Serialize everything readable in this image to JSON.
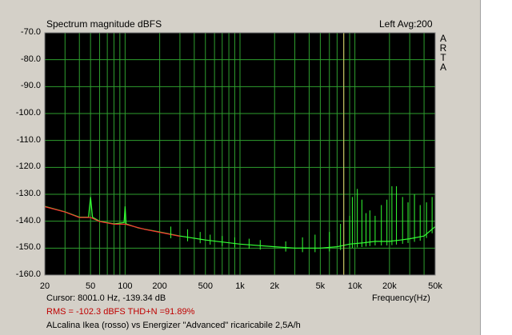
{
  "window": {
    "title": "Spectrum magnitude dBFS",
    "status": "Left  Avg:200",
    "brand_letters": [
      "A",
      "R",
      "T",
      "A"
    ]
  },
  "readouts": {
    "cursor": "Cursor:  8001.0 Hz, -139.34 dB",
    "rms": "RMS = -102.3 dBFS    THD+N =91.89%",
    "description": "ALcalina Ikea (rosso) vs Energizer \"Advanced\" ricaricabile 2,5A/h"
  },
  "colors": {
    "plot_bg": "#000000",
    "grid": "#2e9e2e",
    "trace_green": "#33ff33",
    "trace_red": "#ff3030",
    "trace_yellow": "#d8d040",
    "cursor_line": "#e8d070",
    "rms_text": "#c00000"
  },
  "chart_data": {
    "type": "line",
    "title": "Spectrum magnitude dBFS",
    "xlabel": "Frequency(Hz)",
    "ylabel": "",
    "x_scale": "log",
    "xlim": [
      20,
      50000
    ],
    "ylim": [
      -160,
      -70
    ],
    "x_ticks": [
      20,
      50,
      100,
      200,
      500,
      1000,
      2000,
      5000,
      10000,
      20000,
      50000
    ],
    "x_tick_labels": [
      "20",
      "50",
      "100",
      "200",
      "500",
      "1k",
      "2k",
      "5k",
      "10k",
      "20k",
      "50k"
    ],
    "y_ticks": [
      -70,
      -80,
      -90,
      -100,
      -110,
      -120,
      -130,
      -140,
      -150,
      -160
    ],
    "y_tick_labels": [
      "-70.0",
      "-80.0",
      "-90.0",
      "-100.0",
      "-110.0",
      "-120.0",
      "-130.0",
      "-140.0",
      "-150.0",
      "-160.0"
    ],
    "grid": true,
    "cursor_x": 8001,
    "series": [
      {
        "color": "#33ff33",
        "x": [
          20,
          30,
          40,
          48,
          50,
          52,
          60,
          80,
          98,
          100,
          102,
          130,
          150,
          200,
          300,
          500,
          1000,
          2000,
          3000,
          5000,
          7000,
          9000,
          12000,
          15000,
          20000,
          25000,
          30000,
          40000,
          50000
        ],
        "y": [
          -134.5,
          -136.5,
          -138.5,
          -138.5,
          -131,
          -138.5,
          -140,
          -141,
          -140.5,
          -134.5,
          -141,
          -142.5,
          -143,
          -144,
          -145.5,
          -147,
          -148.5,
          -149.5,
          -150,
          -150,
          -149.5,
          -148.5,
          -148,
          -147.5,
          -147.5,
          -147,
          -146.5,
          -145.5,
          -142
        ]
      },
      {
        "color": "#ff3030",
        "x": [
          20,
          30,
          40,
          50,
          60,
          80,
          100,
          150,
          200,
          300
        ],
        "y": [
          -134.6,
          -136.6,
          -138.6,
          -138.6,
          -140.1,
          -141.1,
          -141.1,
          -143.1,
          -144.1,
          -145.6
        ]
      }
    ],
    "harmonic_peaks": {
      "x": [
        250,
        350,
        450,
        550,
        700,
        900,
        1200,
        1500,
        2500,
        3500,
        4500,
        6000,
        7500,
        9000,
        9500,
        10500,
        11500,
        12500,
        13500,
        15000,
        17000,
        19000,
        21000,
        23000,
        26000,
        29000,
        33000,
        37000,
        42000,
        47000
      ],
      "y": [
        -142,
        -143,
        -144,
        -145,
        -145.5,
        -146,
        -146.5,
        -147,
        -147.5,
        -146,
        -145,
        -144,
        -141,
        -138,
        -131,
        -128,
        -132,
        -137,
        -136,
        -138,
        -134,
        -132,
        -127,
        -127,
        -131,
        -133,
        -130,
        -134,
        -133,
        -131
      ]
    }
  }
}
